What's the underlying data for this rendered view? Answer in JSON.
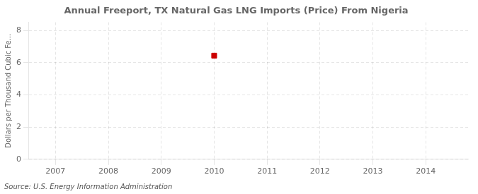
{
  "chart_data": {
    "type": "scatter",
    "title": "Annual Freeport, TX Natural Gas LNG Imports (Price) From Nigeria",
    "y_label": "Dollars per Thousand Cubic Fe...",
    "annotation": "Source: U.S. Energy Information Administration",
    "x": [
      2010
    ],
    "values": [
      6.43
    ],
    "color": "#cc0000",
    "marker": "square",
    "xlim": [
      2006.5,
      2014.8
    ],
    "xticks": [
      2007,
      2008,
      2009,
      2010,
      2011,
      2012,
      2013,
      2014
    ],
    "ylim": [
      0,
      8.5
    ],
    "yticks": [
      0,
      2,
      4,
      6,
      8
    ],
    "grid": true
  }
}
